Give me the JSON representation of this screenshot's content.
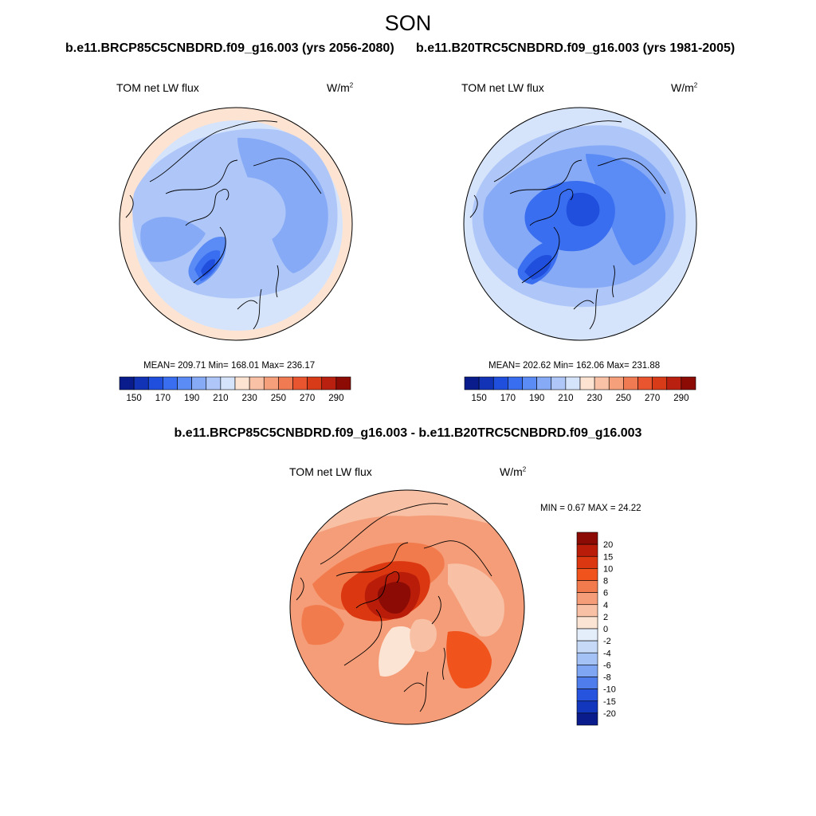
{
  "season": "SON",
  "panels": [
    {
      "run_title": "b.e11.BRCP85C5CNBDRD.f09_g16.003 (yrs 2056-2080)",
      "variable": "TOM net LW flux",
      "units_base": "W/m",
      "units_exp": "2",
      "stats": "MEAN= 209.71  Min= 168.01  Max= 236.17",
      "mean": 209.71,
      "min": 168.01,
      "max": 236.17
    },
    {
      "run_title": "b.e11.B20TRC5CNBDRD.f09_g16.003 (yrs 1981-2005)",
      "variable": "TOM net LW flux",
      "units_base": "W/m",
      "units_exp": "2",
      "stats": "MEAN= 202.62  Min= 162.06  Max= 231.88",
      "mean": 202.62,
      "min": 162.06,
      "max": 231.88
    }
  ],
  "abs_colorbar": {
    "labels": [
      "150",
      "170",
      "190",
      "210",
      "230",
      "250",
      "270",
      "290"
    ],
    "colors": [
      "#0a1c8c",
      "#1233b5",
      "#1f4fdc",
      "#3a6ef0",
      "#5b8bf4",
      "#86aaf6",
      "#aec6f8",
      "#d6e4fb",
      "#fde3d2",
      "#f9c2a6",
      "#f59f7b",
      "#f07a52",
      "#e9552f",
      "#d73b18",
      "#b92010",
      "#8c0c05"
    ]
  },
  "diff": {
    "title": "b.e11.BRCP85C5CNBDRD.f09_g16.003 - b.e11.B20TRC5CNBDRD.f09_g16.003",
    "variable": "TOM net LW flux",
    "units_base": "W/m",
    "units_exp": "2",
    "minmax": "MIN =   0.67 MAX =  24.22",
    "min": 0.67,
    "max": 24.22,
    "colorbar_labels": [
      "20",
      "15",
      "10",
      "8",
      "6",
      "4",
      "2",
      "0",
      "-2",
      "-4",
      "-6",
      "-8",
      "-10",
      "-15",
      "-20"
    ],
    "colorbar_colors": [
      "#8c0c05",
      "#b91d0a",
      "#db3710",
      "#f0531c",
      "#f27b4d",
      "#f59d78",
      "#f8c0a4",
      "#fce4d4",
      "#e4eefb",
      "#c6daf8",
      "#a5c2f6",
      "#7fa6f2",
      "#4f7eec",
      "#2654de",
      "#1236bc",
      "#0a1c8c"
    ]
  }
}
